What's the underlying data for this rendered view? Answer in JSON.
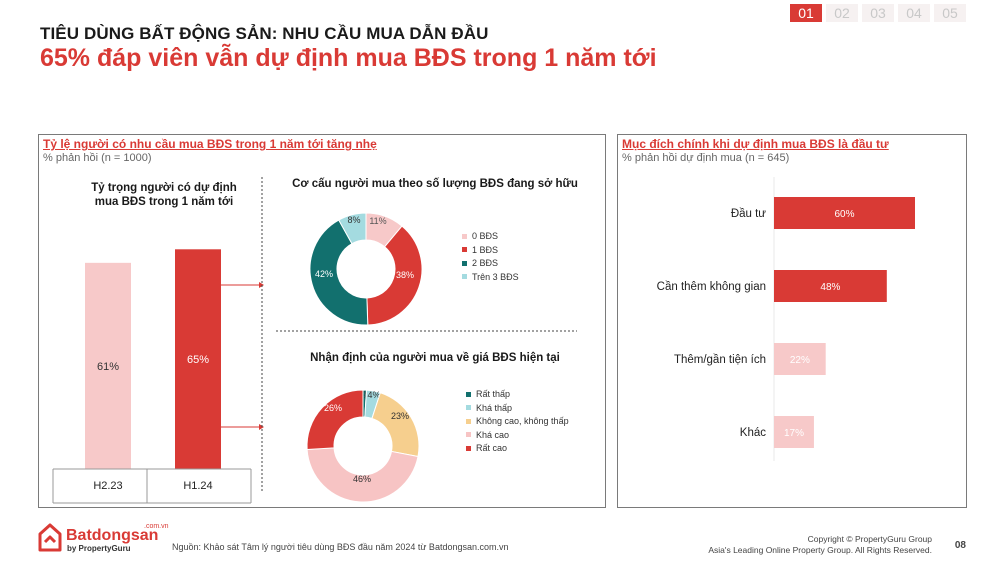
{
  "tabs": [
    {
      "label": "01",
      "active": true
    },
    {
      "label": "02",
      "active": false
    },
    {
      "label": "03",
      "active": false
    },
    {
      "label": "04",
      "active": false
    },
    {
      "label": "05",
      "active": false
    }
  ],
  "header": {
    "kicker": "TIÊU DÙNG BẤT ĐỘNG SẢN: NHU CẦU MUA DẪN ĐẦU",
    "headline": "65% đáp viên vẫn dự định mua BĐS trong 1 năm tới"
  },
  "colors": {
    "brand_red": "#d93a35",
    "light_pink": "#f7c9c9",
    "teal": "#12706e",
    "light_teal": "#a4dbe0",
    "sand": "#f6cf8e",
    "pink": "#f7c4c4"
  },
  "left_panel": {
    "title": "Tỷ lệ người có nhu cầu mua BĐS trong 1 năm tới tăng nhẹ",
    "subtitle": "% phản hồi (n = 1000)"
  },
  "right_panel": {
    "title": "Mục đích chính khi dự định mua BĐS là đầu tư",
    "subtitle": "% phản hồi dự định mua (n = 645)"
  },
  "chart_data": [
    {
      "type": "bar",
      "title": "Tỷ trọng người có dự định mua BĐS trong 1 năm tới",
      "title_lines": [
        "Tỷ trọng người có dự định",
        "mua BĐS trong 1 năm tới"
      ],
      "categories": [
        "H2.23",
        "H1.24"
      ],
      "values": [
        61,
        65
      ],
      "labels": [
        "61%",
        "65%"
      ],
      "colors": [
        "#f7c9c9",
        "#d93a35"
      ],
      "ylim": [
        0,
        100
      ]
    },
    {
      "type": "pie",
      "title": "Cơ cấu người mua theo số lượng BĐS đang sở hữu",
      "categories": [
        "0 BĐS",
        "1 BĐS",
        "2 BĐS",
        "Trên 3 BĐS"
      ],
      "values": [
        11,
        38,
        42,
        8
      ],
      "labels": [
        "11%",
        "38%",
        "42%",
        "8%"
      ],
      "colors": [
        "#f7c9c9",
        "#d93a35",
        "#12706e",
        "#a4dbe0"
      ],
      "legend": "right"
    },
    {
      "type": "pie",
      "title": "Nhận định của người mua về giá BĐS hiện tại",
      "categories": [
        "Rất thấp",
        "Khá thấp",
        "Không cao, không thấp",
        "Khá cao",
        "Rất cao"
      ],
      "values": [
        1,
        4,
        23,
        46,
        26
      ],
      "labels": [
        "1%",
        "4%",
        "23%",
        "46%",
        "26%"
      ],
      "colors": [
        "#12706e",
        "#a4dbe0",
        "#f6cf8e",
        "#f7c4c4",
        "#d93a35"
      ],
      "legend": "right"
    },
    {
      "type": "bar",
      "orientation": "horizontal",
      "title": "Mục đích chính khi dự định mua BĐS là đầu tư",
      "categories": [
        "Đầu tư",
        "Cần thêm không gian",
        "Thêm/gần tiện ích",
        "Khác"
      ],
      "values": [
        60,
        48,
        22,
        17
      ],
      "labels": [
        "60%",
        "48%",
        "22%",
        "17%"
      ],
      "colors": [
        "#d93a35",
        "#d93a35",
        "#f7c9c9",
        "#f7c9c9"
      ],
      "xlim": [
        0,
        100
      ]
    }
  ],
  "footer": {
    "logo_text": "Batdongsan",
    "logo_domain": ".com.vn",
    "logo_tagline": "by PropertyGuru",
    "source": "Nguồn: Khảo sát Tâm lý người tiêu dùng BĐS đầu năm 2024 từ Batdongsan.com.vn",
    "copyright_1": "Copyright © PropertyGuru Group",
    "copyright_2": "Asia's Leading Online Property Group. All Rights Reserved.",
    "page_number": "08"
  }
}
